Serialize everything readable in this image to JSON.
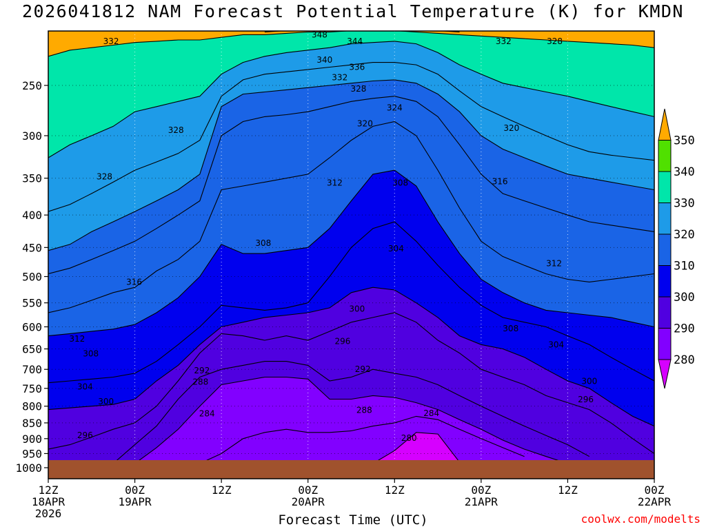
{
  "chart_data": {
    "type": "heatmap",
    "title": "2026041812 NAM Forecast Potential Temperature (K) for KMDN",
    "xlabel": "Forecast Time (UTC)",
    "credit": "coolwx.com/modelts",
    "y_axis": {
      "scale": "pressure (log), inverted",
      "ylim": [
        1000,
        200
      ],
      "ticks": [
        250,
        300,
        350,
        400,
        450,
        500,
        550,
        600,
        650,
        700,
        750,
        800,
        850,
        900,
        950,
        1000
      ]
    },
    "x_axis": {
      "xlim_hours": [
        0,
        84
      ],
      "ticks": [
        {
          "hour": 0,
          "lines": [
            "12Z",
            "18APR",
            "2026"
          ]
        },
        {
          "hour": 12,
          "lines": [
            "00Z",
            "19APR"
          ]
        },
        {
          "hour": 24,
          "lines": [
            "12Z"
          ]
        },
        {
          "hour": 36,
          "lines": [
            "00Z",
            "20APR"
          ]
        },
        {
          "hour": 48,
          "lines": [
            "12Z"
          ]
        },
        {
          "hour": 60,
          "lines": [
            "00Z",
            "21APR"
          ]
        },
        {
          "hour": 72,
          "lines": [
            "12Z"
          ]
        },
        {
          "hour": 84,
          "lines": [
            "00Z",
            "22APR"
          ]
        }
      ]
    },
    "colorbar": {
      "levels": [
        280,
        290,
        300,
        310,
        320,
        330,
        340,
        350
      ],
      "labels": [
        "280",
        "290",
        "300",
        "310",
        "320",
        "330",
        "340",
        "350"
      ],
      "colors": [
        "#d600ff",
        "#8200ff",
        "#5000e0",
        "#0000ee",
        "#1a64e6",
        "#1e9be8",
        "#00e6aa",
        "#50e000",
        "#eeee00",
        "#ffaa00"
      ]
    },
    "grid": true,
    "x_hours": [
      0,
      3,
      6,
      9,
      12,
      15,
      18,
      21,
      24,
      27,
      30,
      33,
      36,
      39,
      42,
      45,
      48,
      51,
      54,
      57,
      60,
      63,
      66,
      69,
      72,
      75,
      78,
      81,
      84
    ],
    "contours": [
      {
        "level": 280,
        "pressure": [
          null,
          null,
          null,
          null,
          null,
          null,
          null,
          null,
          null,
          null,
          null,
          null,
          null,
          null,
          null,
          985,
          940,
          880,
          885,
          980,
          null,
          null,
          null,
          null,
          null,
          null,
          null,
          null,
          null
        ]
      },
      {
        "level": 284,
        "pressure": [
          null,
          null,
          null,
          null,
          null,
          null,
          null,
          985,
          950,
          900,
          880,
          870,
          880,
          880,
          875,
          860,
          850,
          830,
          840,
          870,
          900,
          930,
          960,
          null,
          null,
          null,
          null,
          null,
          null
        ]
      },
      {
        "level": 288,
        "pressure": [
          null,
          null,
          null,
          null,
          985,
          930,
          870,
          800,
          740,
          730,
          720,
          720,
          725,
          780,
          780,
          770,
          775,
          790,
          810,
          840,
          870,
          905,
          935,
          960,
          985,
          null,
          null,
          null,
          null
        ]
      },
      {
        "level": 292,
        "pressure": [
          null,
          null,
          null,
          985,
          920,
          860,
          780,
          720,
          700,
          690,
          680,
          680,
          690,
          730,
          720,
          700,
          710,
          720,
          740,
          770,
          800,
          830,
          860,
          890,
          920,
          960,
          null,
          null,
          null
        ]
      },
      {
        "level": 296,
        "pressure": [
          935,
          920,
          895,
          870,
          850,
          800,
          730,
          660,
          615,
          620,
          630,
          620,
          630,
          610,
          590,
          580,
          570,
          590,
          630,
          660,
          700,
          720,
          740,
          770,
          790,
          810,
          850,
          900,
          950
        ]
      },
      {
        "level": 300,
        "pressure": [
          810,
          805,
          800,
          795,
          780,
          730,
          690,
          640,
          600,
          590,
          580,
          575,
          570,
          560,
          530,
          520,
          525,
          550,
          580,
          620,
          640,
          650,
          670,
          700,
          730,
          750,
          790,
          830,
          860
        ]
      },
      {
        "level": 304,
        "pressure": [
          735,
          730,
          725,
          720,
          710,
          680,
          640,
          600,
          555,
          560,
          565,
          560,
          550,
          500,
          450,
          420,
          410,
          440,
          480,
          520,
          555,
          580,
          590,
          600,
          620,
          640,
          670,
          700,
          730
        ]
      },
      {
        "level": 308,
        "pressure": [
          620,
          615,
          610,
          605,
          595,
          570,
          540,
          500,
          445,
          460,
          460,
          455,
          450,
          420,
          380,
          345,
          340,
          360,
          410,
          460,
          505,
          530,
          550,
          565,
          570,
          575,
          580,
          590,
          600
        ]
      },
      {
        "level": 312,
        "pressure": [
          570,
          560,
          545,
          530,
          520,
          490,
          470,
          440,
          365,
          360,
          355,
          350,
          345,
          325,
          305,
          290,
          285,
          300,
          340,
          390,
          440,
          465,
          480,
          495,
          505,
          510,
          505,
          500,
          495
        ]
      },
      {
        "level": 316,
        "pressure": [
          495,
          485,
          470,
          455,
          440,
          420,
          400,
          380,
          300,
          285,
          280,
          278,
          275,
          270,
          265,
          262,
          260,
          265,
          280,
          310,
          345,
          370,
          380,
          390,
          400,
          410,
          415,
          420,
          425
        ]
      },
      {
        "level": 320,
        "pressure": [
          455,
          445,
          425,
          410,
          395,
          380,
          365,
          345,
          270,
          258,
          256,
          254,
          252,
          250,
          248,
          246,
          245,
          248,
          258,
          275,
          300,
          315,
          325,
          335,
          345,
          350,
          355,
          360,
          365
        ]
      },
      {
        "level": 324,
        "pressure": [
          395,
          385,
          370,
          355,
          340,
          330,
          320,
          305,
          260,
          245,
          240,
          238,
          236,
          234,
          232,
          230,
          230,
          232,
          240,
          255,
          270,
          280,
          290,
          300,
          310,
          318,
          322,
          325,
          328
        ]
      },
      {
        "level": 328,
        "pressure": [
          325,
          310,
          300,
          290,
          275,
          270,
          265,
          260,
          240,
          230,
          225,
          222,
          220,
          218,
          215,
          214,
          213,
          215,
          222,
          232,
          240,
          248,
          252,
          256,
          260,
          265,
          270,
          275,
          280
        ]
      },
      {
        "level": 332,
        "pressure": [
          225,
          220,
          218,
          216,
          214,
          213,
          212,
          212,
          210,
          208,
          208,
          207,
          206,
          206,
          205,
          205,
          205,
          206,
          207,
          208,
          209,
          210,
          211,
          212,
          213,
          214,
          215,
          216,
          218
        ]
      },
      {
        "level": 340,
        "pressure": [
          null,
          null,
          null,
          null,
          null,
          null,
          null,
          null,
          null,
          null,
          206,
          205,
          205,
          204,
          204,
          204,
          204,
          205,
          205,
          206,
          null,
          null,
          null,
          null,
          null,
          null,
          null,
          null,
          null
        ]
      },
      {
        "level": 348,
        "pressure": [
          null,
          null,
          null,
          null,
          null,
          null,
          null,
          null,
          null,
          null,
          null,
          202,
          202,
          202,
          202,
          202,
          203,
          null,
          null,
          null,
          null,
          null,
          null,
          null,
          null,
          null,
          null,
          null,
          null
        ]
      }
    ],
    "labels": [
      {
        "level": 348,
        "hour": 37.6,
        "pressure": 208
      },
      {
        "level": 344,
        "hour": 42.5,
        "pressure": 213
      },
      {
        "level": 340,
        "hour": 38.3,
        "pressure": 228
      },
      {
        "level": 336,
        "hour": 42.8,
        "pressure": 234
      },
      {
        "level": 332,
        "hour": 40.4,
        "pressure": 243
      },
      {
        "level": 328,
        "hour": 43.0,
        "pressure": 253
      },
      {
        "level": 324,
        "hour": 48.0,
        "pressure": 271
      },
      {
        "level": 320,
        "hour": 43.9,
        "pressure": 287
      },
      {
        "level": 332,
        "hour": 8.7,
        "pressure": 213
      },
      {
        "level": 328,
        "hour": 17.7,
        "pressure": 294
      },
      {
        "level": 328,
        "hour": 7.8,
        "pressure": 348
      },
      {
        "level": 332,
        "hour": 63.1,
        "pressure": 213
      },
      {
        "level": 328,
        "hour": 70.2,
        "pressure": 213
      },
      {
        "level": 320,
        "hour": 64.2,
        "pressure": 292
      },
      {
        "level": 312,
        "hour": 39.7,
        "pressure": 356
      },
      {
        "level": 308,
        "hour": 48.8,
        "pressure": 356
      },
      {
        "level": 316,
        "hour": 62.6,
        "pressure": 354
      },
      {
        "level": 308,
        "hour": 29.8,
        "pressure": 443
      },
      {
        "level": 304,
        "hour": 48.2,
        "pressure": 452
      },
      {
        "level": 312,
        "hour": 70.1,
        "pressure": 477
      },
      {
        "level": 316,
        "hour": 11.9,
        "pressure": 510
      },
      {
        "level": 300,
        "hour": 42.8,
        "pressure": 562
      },
      {
        "level": 308,
        "hour": 64.1,
        "pressure": 604
      },
      {
        "level": 304,
        "hour": 70.4,
        "pressure": 640
      },
      {
        "level": 312,
        "hour": 4.0,
        "pressure": 627
      },
      {
        "level": 308,
        "hour": 5.9,
        "pressure": 661
      },
      {
        "level": 296,
        "hour": 40.8,
        "pressure": 632
      },
      {
        "level": 292,
        "hour": 43.6,
        "pressure": 700
      },
      {
        "level": 292,
        "hour": 21.3,
        "pressure": 703
      },
      {
        "level": 288,
        "hour": 21.1,
        "pressure": 733
      },
      {
        "level": 304,
        "hour": 5.1,
        "pressure": 746
      },
      {
        "level": 300,
        "hour": 75.0,
        "pressure": 731
      },
      {
        "level": 296,
        "hour": 74.5,
        "pressure": 781
      },
      {
        "level": 300,
        "hour": 8.0,
        "pressure": 787
      },
      {
        "level": 284,
        "hour": 22.0,
        "pressure": 822
      },
      {
        "level": 288,
        "hour": 43.8,
        "pressure": 812
      },
      {
        "level": 284,
        "hour": 53.1,
        "pressure": 821
      },
      {
        "level": 296,
        "hour": 5.1,
        "pressure": 889
      },
      {
        "level": 280,
        "hour": 50.0,
        "pressure": 898
      }
    ]
  }
}
